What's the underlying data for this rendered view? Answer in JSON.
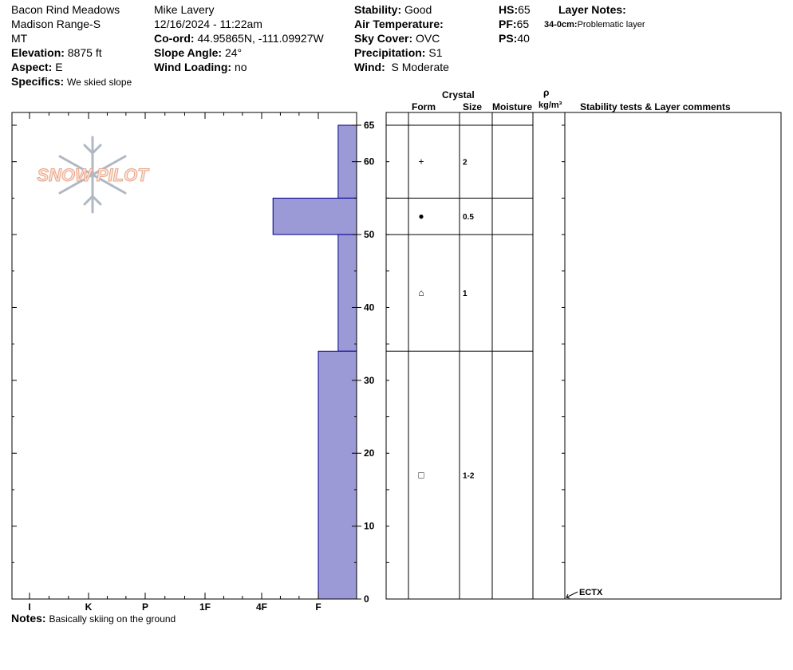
{
  "location": {
    "name": "Bacon Rind Meadows",
    "range": "Madison Range-S",
    "state": "MT",
    "elevation_label": "Elevation:",
    "elevation": "8875 ft",
    "aspect_label": "Aspect:",
    "aspect": "E",
    "specifics_label": "Specifics:",
    "specifics": "We skied slope"
  },
  "observer": {
    "name": "Mike Lavery",
    "datetime": "12/16/2024 - 11:22am",
    "coord_label": "Co-ord:",
    "coord": "44.95865N, -111.09927W",
    "slope_label": "Slope Angle:",
    "slope": "24°",
    "wind_loading_label": "Wind Loading:",
    "wind_loading": "no"
  },
  "conditions": {
    "stability_label": "Stability:",
    "stability": "Good",
    "air_temp_label": "Air Temperature:",
    "sky_label": "Sky Cover:",
    "sky": "OVC",
    "precip_label": "Precipitation:",
    "precip": "S1",
    "wind_label": "Wind:",
    "wind": "S Moderate"
  },
  "depths": {
    "hs_label": "HS:",
    "hs": "65",
    "pf_label": "PF:",
    "pf": "65",
    "ps_label": "PS:",
    "ps": "40"
  },
  "layer_notes": {
    "title": "Layer Notes:",
    "range": "34-0cm:",
    "text": "Problematic layer"
  },
  "columns": {
    "crystal": "Crystal",
    "form": "Form",
    "size": "Size",
    "moisture": "Moisture",
    "rho": "ρ",
    "density_unit": "kg/m³",
    "stability_comments": "Stability tests & Layer comments"
  },
  "logo_text": "SNOW PILOT",
  "notes": {
    "label": "Notes:",
    "text": "Basically skiing on the ground"
  },
  "colors": {
    "bar_fill": "#9b99d6",
    "bar_stroke": "#00008b"
  },
  "chart_data": {
    "type": "bar",
    "orientation": "horizontal",
    "x_categories": [
      "I",
      "K",
      "P",
      "1F",
      "4F",
      "F"
    ],
    "x_category_levels": [
      1,
      2,
      3,
      4,
      5,
      6
    ],
    "y_range": [
      0,
      65
    ],
    "y_ticks": [
      0,
      10,
      20,
      30,
      40,
      50,
      60,
      65
    ],
    "y_minor_ticks": [
      5,
      15,
      25,
      35,
      45,
      55
    ],
    "layers": [
      {
        "bottom": 55,
        "top": 65,
        "hardness": "F+",
        "hardness_level": 6.35,
        "form": "+",
        "size": "2"
      },
      {
        "bottom": 50,
        "top": 55,
        "hardness": "4F-",
        "hardness_level": 5.2,
        "form": "●",
        "size": "0.5"
      },
      {
        "bottom": 34,
        "top": 50,
        "hardness": "F+",
        "hardness_level": 6.35,
        "form": "⌂",
        "size": "1"
      },
      {
        "bottom": 0,
        "top": 34,
        "hardness": "F",
        "hardness_level": 6.0,
        "form": "□",
        "size": "1-2"
      }
    ],
    "tests": [
      {
        "depth": 0,
        "label": "ECTX"
      }
    ]
  }
}
